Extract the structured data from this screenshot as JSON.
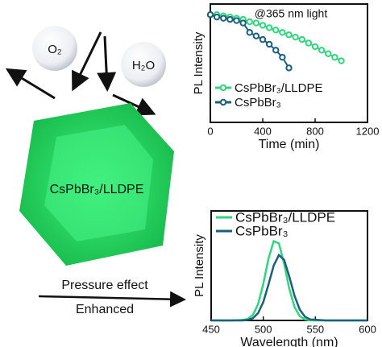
{
  "chart_data": [
    {
      "type": "line",
      "annotation": "@365 nm light",
      "x_label": "Time (min)",
      "y_label": "PL Intensity",
      "xlim": [
        0,
        1200
      ],
      "xticks": [
        0,
        400,
        800,
        1200
      ],
      "ylim": [
        0,
        1
      ],
      "markers": true,
      "legend": "lower-left",
      "series": [
        {
          "name": "CsPbBr₃/LLDPE",
          "color": "#2fd67c",
          "x": [
            0,
            50,
            100,
            150,
            200,
            250,
            300,
            350,
            400,
            450,
            500,
            550,
            600,
            650,
            700,
            750,
            800,
            850,
            900,
            950,
            1000
          ],
          "values": [
            0.91,
            0.91,
            0.9,
            0.89,
            0.88,
            0.87,
            0.85,
            0.84,
            0.82,
            0.8,
            0.78,
            0.76,
            0.74,
            0.72,
            0.7,
            0.67,
            0.64,
            0.61,
            0.58,
            0.55,
            0.52
          ]
        },
        {
          "name": "CsPbBr₃",
          "color": "#1b5f7c",
          "x": [
            0,
            50,
            100,
            150,
            200,
            250,
            300,
            350,
            400,
            450,
            500,
            550,
            600
          ],
          "values": [
            0.91,
            0.89,
            0.88,
            0.87,
            0.86,
            0.84,
            0.76,
            0.73,
            0.7,
            0.66,
            0.61,
            0.55,
            0.46
          ]
        }
      ]
    },
    {
      "type": "line",
      "x_label": "Wavelength (nm)",
      "y_label": "PL Intensity",
      "xlim": [
        450,
        600
      ],
      "xticks": [
        450,
        500,
        550,
        600
      ],
      "ylim": [
        0,
        1
      ],
      "markers": false,
      "legend": "upper-left",
      "series": [
        {
          "name": "CsPbBr₃/LLDPE",
          "color": "#2fd67c",
          "x": [
            450,
            470,
            480,
            485,
            490,
            495,
            500,
            505,
            510,
            515,
            520,
            525,
            530,
            535,
            540,
            545,
            560,
            580,
            600
          ],
          "values": [
            0,
            0,
            0.005,
            0.013,
            0.05,
            0.148,
            0.332,
            0.564,
            0.724,
            0.704,
            0.519,
            0.289,
            0.122,
            0.039,
            0.01,
            0,
            0,
            0,
            0
          ]
        },
        {
          "name": "CsPbBr₃",
          "color": "#1b5f7c",
          "x": [
            450,
            470,
            480,
            485,
            490,
            495,
            500,
            505,
            510,
            515,
            520,
            525,
            530,
            535,
            540,
            545,
            560,
            580,
            600
          ],
          "values": [
            0,
            0,
            0,
            0.005,
            0.02,
            0.066,
            0.167,
            0.328,
            0.501,
            0.597,
            0.554,
            0.4,
            0.225,
            0.099,
            0.034,
            0.009,
            0,
            0,
            0
          ]
        }
      ]
    }
  ],
  "diagram": {
    "oxygen": "O₂",
    "water": "H₂O",
    "crystal_label": "CsPbBr₃/LLDPE",
    "arrow_top": "Pressure effect",
    "arrow_bottom": "Enhanced"
  }
}
